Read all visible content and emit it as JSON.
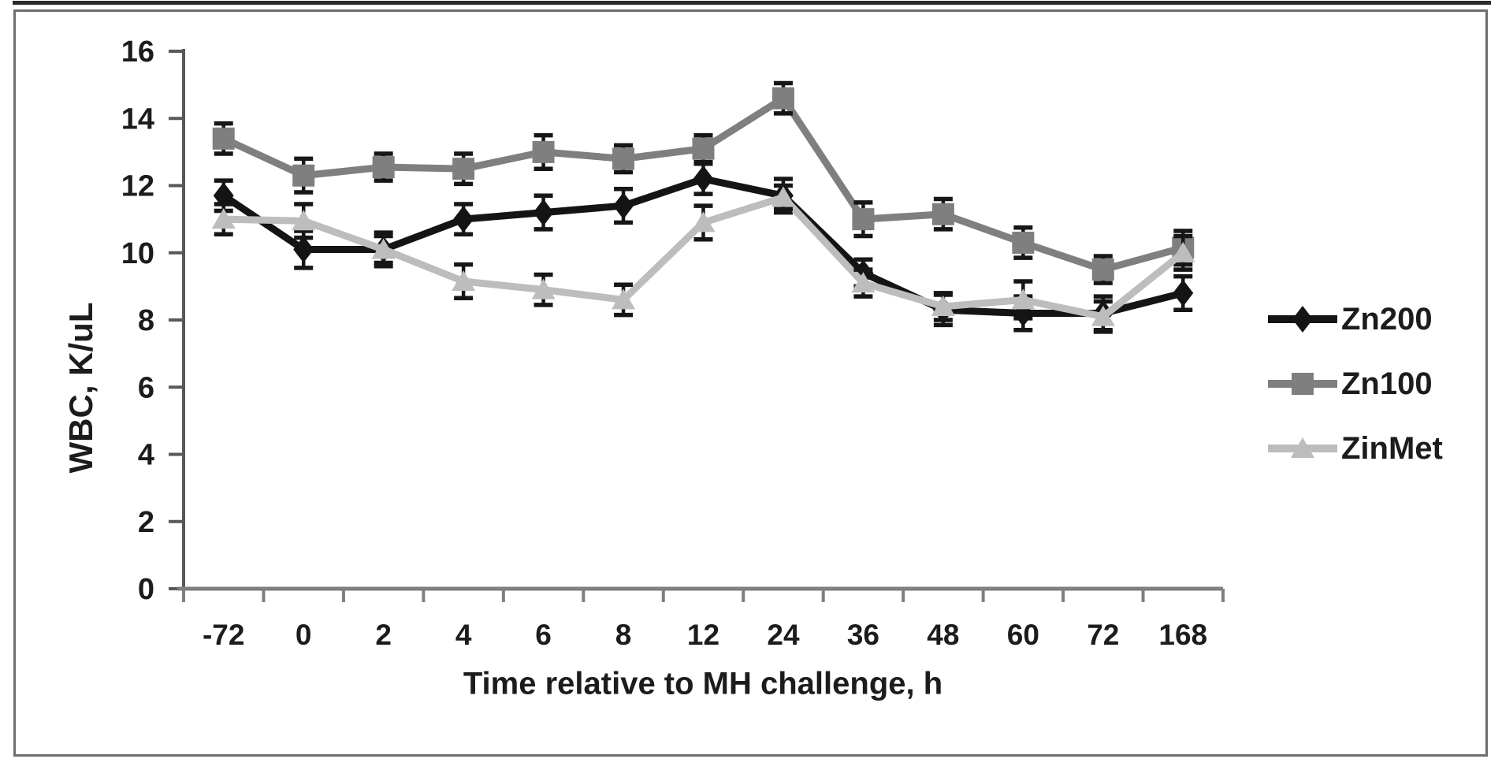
{
  "figure": {
    "background": "#ffffff",
    "top_rule_color": "#2b2b2b",
    "frame_color": "#6e6e6e",
    "x_axis_color": "#7f7f7f",
    "y_axis_color": "#595959",
    "tick_label_color": "#1c1c1c",
    "error_bar_color": "#161616"
  },
  "chart_data": {
    "type": "line",
    "title": "",
    "xlabel": "Time relative to MH challenge, h",
    "ylabel": "WBC, K/uL",
    "categories": [
      "-72",
      "0",
      "2",
      "4",
      "6",
      "8",
      "12",
      "24",
      "36",
      "48",
      "60",
      "72",
      "168"
    ],
    "ylim": [
      0,
      16
    ],
    "yticks": [
      0,
      2,
      4,
      6,
      8,
      10,
      12,
      14,
      16
    ],
    "grid": false,
    "legend_position": "right-middle",
    "error_bars": true,
    "series": [
      {
        "name": "Zn200",
        "marker": "diamond",
        "color": "#141414",
        "values": [
          11.7,
          10.1,
          10.1,
          11.0,
          11.2,
          11.4,
          12.2,
          11.7,
          9.4,
          8.3,
          8.2,
          8.2,
          8.8
        ],
        "errors": [
          0.45,
          0.55,
          0.5,
          0.45,
          0.5,
          0.5,
          0.45,
          0.5,
          0.4,
          0.45,
          0.5,
          0.5,
          0.5
        ]
      },
      {
        "name": "Zn100",
        "marker": "square",
        "color": "#7f7f7f",
        "values": [
          13.4,
          12.3,
          12.55,
          12.5,
          13.0,
          12.8,
          13.1,
          14.6,
          11.0,
          11.15,
          10.3,
          9.5,
          10.15
        ],
        "errors": [
          0.45,
          0.5,
          0.4,
          0.45,
          0.5,
          0.4,
          0.4,
          0.45,
          0.5,
          0.45,
          0.45,
          0.4,
          0.5
        ]
      },
      {
        "name": "ZinMet",
        "marker": "triangle",
        "color": "#bdbdbd",
        "values": [
          11.0,
          10.95,
          10.1,
          9.15,
          8.9,
          8.6,
          10.9,
          11.65,
          9.1,
          8.4,
          8.6,
          8.1,
          10.0
        ],
        "errors": [
          0.45,
          0.5,
          0.4,
          0.5,
          0.45,
          0.45,
          0.5,
          0.35,
          0.4,
          0.4,
          0.55,
          0.45,
          0.5
        ]
      }
    ]
  }
}
